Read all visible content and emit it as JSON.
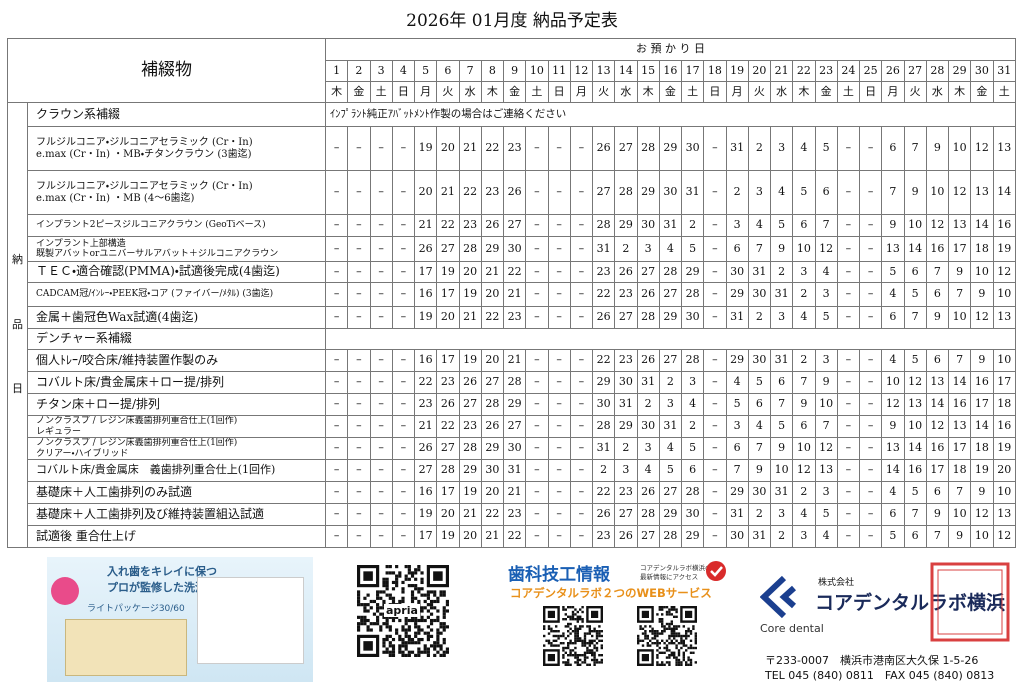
{
  "title": "2026年 01月度 納品予定表",
  "table": {
    "item_header": "補綴物",
    "date_header": "お 預 か り 日",
    "side_label": [
      "納",
      "品",
      "日"
    ],
    "days": [
      1,
      2,
      3,
      4,
      5,
      6,
      7,
      8,
      9,
      10,
      11,
      12,
      13,
      14,
      15,
      16,
      17,
      18,
      19,
      20,
      21,
      22,
      23,
      24,
      25,
      26,
      27,
      28,
      29,
      30,
      31
    ],
    "weekdays": [
      "木",
      "金",
      "土",
      "日",
      "月",
      "火",
      "水",
      "木",
      "金",
      "土",
      "日",
      "月",
      "火",
      "水",
      "木",
      "金",
      "土",
      "日",
      "月",
      "火",
      "水",
      "木",
      "金",
      "土",
      "日",
      "月",
      "火",
      "水",
      "木",
      "金",
      "土"
    ],
    "sections": [
      {
        "title": "クラウン系補綴",
        "note": "ｲﾝﾌﾟﾗﾝﾄ純正ｱﾊﾞｯﾄﾒﾝﾄ作製の場合はご連絡ください",
        "rows": [
          {
            "label": [
              "フルジルコニア・ジルコニアセラミック (Cr・In)",
              "e.max (Cr・In) ・MB・チタンクラウン (3歯迄)"
            ],
            "values": [
              "–",
              "–",
              "–",
              "–",
              19,
              20,
              21,
              22,
              23,
              "–",
              "–",
              "–",
              26,
              27,
              28,
              29,
              30,
              "–",
              31,
              2,
              3,
              4,
              5,
              "–",
              "–",
              6,
              7,
              9,
              10,
              12,
              13
            ]
          },
          {
            "label": [
              "フルジルコニア・ジルコニアセラミック (Cr・In)",
              "e.max (Cr・In) ・MB (4～6歯迄)"
            ],
            "values": [
              "–",
              "–",
              "–",
              "–",
              20,
              21,
              22,
              23,
              26,
              "–",
              "–",
              "–",
              27,
              28,
              29,
              30,
              31,
              "–",
              2,
              3,
              4,
              5,
              6,
              "–",
              "–",
              7,
              9,
              10,
              12,
              13,
              14
            ]
          },
          {
            "label": [
              "インプラント2ピースジルコニアクラウン (GeoTiベース)"
            ],
            "values": [
              "–",
              "–",
              "–",
              "–",
              21,
              22,
              23,
              26,
              27,
              "–",
              "–",
              "–",
              28,
              29,
              30,
              31,
              2,
              "–",
              3,
              4,
              5,
              6,
              7,
              "–",
              "–",
              9,
              10,
              12,
              13,
              14,
              16
            ]
          },
          {
            "label": [
              "インプラント上部構造",
              "既製アバットorユニバーサルアバット＋ジルコニアクラウン"
            ],
            "values": [
              "–",
              "–",
              "–",
              "–",
              26,
              27,
              28,
              29,
              30,
              "–",
              "–",
              "–",
              31,
              2,
              3,
              4,
              5,
              "–",
              6,
              7,
              9,
              10,
              12,
              "–",
              "–",
              13,
              14,
              16,
              17,
              18,
              19
            ]
          },
          {
            "label": [
              "ＴＥＣ・適合確認(PMMA)・試適後完成(4歯迄)"
            ],
            "values": [
              "–",
              "–",
              "–",
              "–",
              17,
              19,
              20,
              21,
              22,
              "–",
              "–",
              "–",
              23,
              26,
              27,
              28,
              29,
              "–",
              30,
              31,
              2,
              3,
              4,
              "–",
              "–",
              5,
              6,
              7,
              9,
              10,
              12
            ]
          },
          {
            "label": [
              "CADCAM冠/ｲﾝﾚｰ・PEEK冠・コア (ファイバー/ﾒﾀﾙ) (3歯迄)"
            ],
            "values": [
              "–",
              "–",
              "–",
              "–",
              16,
              17,
              19,
              20,
              21,
              "–",
              "–",
              "–",
              22,
              23,
              26,
              27,
              28,
              "–",
              29,
              30,
              31,
              2,
              3,
              "–",
              "–",
              4,
              5,
              6,
              7,
              9,
              10
            ]
          },
          {
            "label": [
              "金属＋歯冠色Wax試適(4歯迄)"
            ],
            "values": [
              "–",
              "–",
              "–",
              "–",
              19,
              20,
              21,
              22,
              23,
              "–",
              "–",
              "–",
              26,
              27,
              28,
              29,
              30,
              "–",
              31,
              2,
              3,
              4,
              5,
              "–",
              "–",
              6,
              7,
              9,
              10,
              12,
              13
            ]
          }
        ]
      },
      {
        "title": "デンチャー系補綴",
        "rows": [
          {
            "label": [
              "個人ﾄﾚｰ/咬合床/維持装置作製のみ"
            ],
            "values": [
              "–",
              "–",
              "–",
              "–",
              16,
              17,
              19,
              20,
              21,
              "–",
              "–",
              "–",
              22,
              23,
              26,
              27,
              28,
              "–",
              29,
              30,
              31,
              2,
              3,
              "–",
              "–",
              4,
              5,
              6,
              7,
              9,
              10
            ]
          },
          {
            "label": [
              "コバルト床/貴金属床＋ロー提/排列"
            ],
            "values": [
              "–",
              "–",
              "–",
              "–",
              22,
              23,
              26,
              27,
              28,
              "–",
              "–",
              "–",
              29,
              30,
              31,
              2,
              3,
              "–",
              4,
              5,
              6,
              7,
              9,
              "–",
              "–",
              10,
              12,
              13,
              14,
              16,
              17
            ]
          },
          {
            "label": [
              "チタン床＋ロー提/排列"
            ],
            "values": [
              "–",
              "–",
              "–",
              "–",
              23,
              26,
              27,
              28,
              29,
              "–",
              "–",
              "–",
              30,
              31,
              2,
              3,
              4,
              "–",
              5,
              6,
              7,
              9,
              10,
              "–",
              "–",
              12,
              13,
              14,
              16,
              17,
              18
            ]
          },
          {
            "label": [
              "ノンクラスプ / レジン床義歯排列重合仕上(1回作)",
              "レギュラー"
            ],
            "values": [
              "–",
              "–",
              "–",
              "–",
              21,
              22,
              23,
              26,
              27,
              "–",
              "–",
              "–",
              28,
              29,
              30,
              31,
              2,
              "–",
              3,
              4,
              5,
              6,
              7,
              "–",
              "–",
              9,
              10,
              12,
              13,
              14,
              16
            ]
          },
          {
            "label": [
              "ノンクラスプ / レジン床義歯排列重合仕上(1回作)",
              "クリアー・ハイブリッド"
            ],
            "values": [
              "–",
              "–",
              "–",
              "–",
              26,
              27,
              28,
              29,
              30,
              "–",
              "–",
              "–",
              31,
              2,
              3,
              4,
              5,
              "–",
              6,
              7,
              9,
              10,
              12,
              "–",
              "–",
              13,
              14,
              16,
              17,
              18,
              19
            ]
          },
          {
            "label": [
              "コバルト床/貴金属床　義歯排列重合仕上(1回作)"
            ],
            "values": [
              "–",
              "–",
              "–",
              "–",
              27,
              28,
              29,
              30,
              31,
              "–",
              "–",
              "–",
              2,
              3,
              4,
              5,
              6,
              "–",
              7,
              9,
              10,
              12,
              13,
              "–",
              "–",
              14,
              16,
              17,
              18,
              19,
              20
            ]
          },
          {
            "label": [
              "基礎床＋人工歯排列のみ試適"
            ],
            "values": [
              "–",
              "–",
              "–",
              "–",
              16,
              17,
              19,
              20,
              21,
              "–",
              "–",
              "–",
              22,
              23,
              26,
              27,
              28,
              "–",
              29,
              30,
              31,
              2,
              3,
              "–",
              "–",
              4,
              5,
              6,
              7,
              9,
              10
            ]
          },
          {
            "label": [
              "基礎床＋人工歯排列及び維持装置組込試適"
            ],
            "values": [
              "–",
              "–",
              "–",
              "–",
              19,
              20,
              21,
              22,
              23,
              "–",
              "–",
              "–",
              26,
              27,
              28,
              29,
              30,
              "–",
              31,
              2,
              3,
              4,
              5,
              "–",
              "–",
              6,
              7,
              9,
              10,
              12,
              13
            ]
          },
          {
            "label": [
              "試適後 重合仕上げ"
            ],
            "values": [
              "–",
              "–",
              "–",
              "–",
              17,
              19,
              20,
              21,
              22,
              "–",
              "–",
              "–",
              23,
              26,
              27,
              28,
              29,
              "–",
              30,
              31,
              2,
              3,
              4,
              "–",
              "–",
              5,
              6,
              7,
              9,
              10,
              12
            ]
          }
        ]
      }
    ]
  },
  "footer": {
    "ad": {
      "lines": [
        "入れ歯をキレイに保つ",
        "プロが監修した洗浄剤"
      ],
      "product": "ライトパッケージ30/60"
    },
    "qr_label": "apria",
    "web": {
      "title": "歯科技工情報",
      "subtitle": "コアデンタルラボ２つのWEBサービス",
      "note": [
        "コアデンタルラボ横浜の",
        "最新情報にアクセス"
      ]
    },
    "company": {
      "prefix": "株式会社",
      "name": "コアデンタルラボ横浜",
      "brand": "Core dental",
      "address": "〒233-0007　横浜市港南区大久保 1-5-26",
      "tel": "TEL 045 (840) 0811　FAX 045 (840) 0813"
    }
  }
}
